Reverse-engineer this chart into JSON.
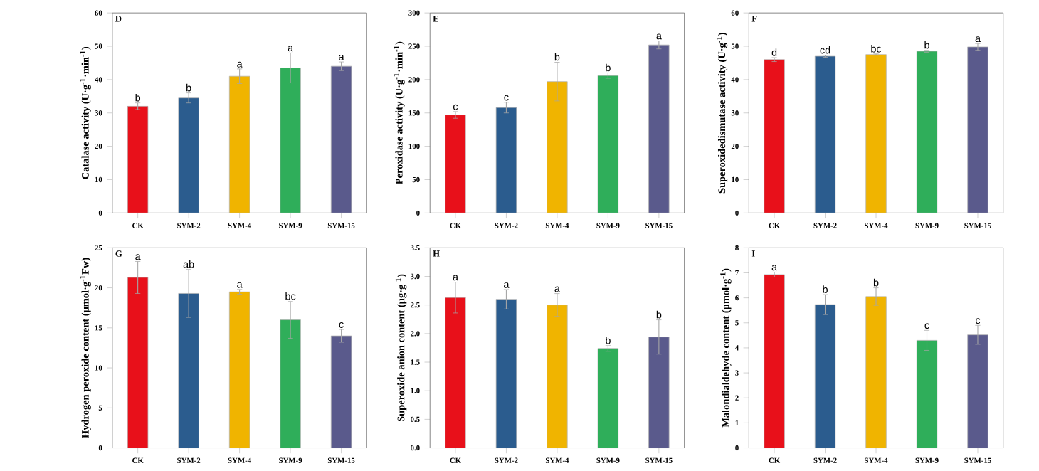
{
  "chart_data": [
    {
      "type": "bar",
      "title": "D",
      "ylabel": "Catalase activity (U·g$^{-1}$·min$^{-1}$)",
      "categories": [
        "CK",
        "SYM-2",
        "SYM-4",
        "SYM-9",
        "SYM-15"
      ],
      "values": [
        32,
        34.5,
        41,
        43.5,
        44
      ],
      "errors": [
        1,
        1.5,
        2.2,
        4.5,
        1.3
      ],
      "colors": [
        "#e8101a",
        "#2b5c8e",
        "#f0b400",
        "#2fae5a",
        "#5a5a8c"
      ],
      "ylim": [
        0,
        60
      ],
      "yticks": [
        0,
        10,
        20,
        30,
        40,
        50,
        60
      ],
      "annotations": [
        {
          "text": "b",
          "x": "CK",
          "y": 33
        },
        {
          "text": "b",
          "x": "SYM-2",
          "y": 36
        },
        {
          "text": "a",
          "x": "SYM-4",
          "y": 43.2
        },
        {
          "text": "a",
          "x": "SYM-9",
          "y": 48
        },
        {
          "text": "a",
          "x": "SYM-15",
          "y": 45.3
        }
      ]
    },
    {
      "type": "bar",
      "title": "E",
      "ylabel": "Peroxidase activity (U·g$^{-1}$·min$^{-1}$)",
      "categories": [
        "CK",
        "SYM-2",
        "SYM-4",
        "SYM-9",
        "SYM-15"
      ],
      "values": [
        147,
        158,
        197,
        206,
        252
      ],
      "errors": [
        5,
        8,
        29,
        4,
        6
      ],
      "colors": [
        "#e8101a",
        "#2b5c8e",
        "#f0b400",
        "#2fae5a",
        "#5a5a8c"
      ],
      "ylim": [
        0,
        300
      ],
      "yticks": [
        0,
        50,
        100,
        150,
        200,
        250,
        300
      ],
      "annotations": [
        {
          "text": "c",
          "x": "CK",
          "y": 152
        },
        {
          "text": "c",
          "x": "SYM-2",
          "y": 166
        },
        {
          "text": "b",
          "x": "SYM-4",
          "y": 226
        },
        {
          "text": "b",
          "x": "SYM-9",
          "y": 210
        },
        {
          "text": "a",
          "x": "SYM-15",
          "y": 258
        }
      ]
    },
    {
      "type": "bar",
      "title": "F",
      "ylabel": "Superoxidedismutase activity (U·g$^{-1}$)",
      "categories": [
        "CK",
        "SYM-2",
        "SYM-4",
        "SYM-9",
        "SYM-15"
      ],
      "values": [
        46,
        47,
        47.5,
        48.5,
        49.8
      ],
      "errors": [
        0.6,
        0.3,
        0.2,
        0.3,
        1
      ],
      "colors": [
        "#e8101a",
        "#2b5c8e",
        "#f0b400",
        "#2fae5a",
        "#5a5a8c"
      ],
      "ylim": [
        0,
        60
      ],
      "yticks": [
        0,
        10,
        20,
        30,
        40,
        50,
        60
      ],
      "annotations": [
        {
          "text": "d",
          "x": "CK",
          "y": 46.6
        },
        {
          "text": "cd",
          "x": "SYM-2",
          "y": 47.3
        },
        {
          "text": "bc",
          "x": "SYM-4",
          "y": 47.7
        },
        {
          "text": "b",
          "x": "SYM-9",
          "y": 48.8
        },
        {
          "text": "a",
          "x": "SYM-15",
          "y": 50.8
        }
      ]
    },
    {
      "type": "bar",
      "title": "G",
      "ylabel": "Hydrogen peroxide content (μmol·g$^{-1}$Fw)",
      "categories": [
        "CK",
        "SYM-2",
        "SYM-4",
        "SYM-9",
        "SYM-15"
      ],
      "values": [
        21.3,
        19.3,
        19.5,
        16,
        14
      ],
      "errors": [
        2,
        3,
        0.3,
        2.3,
        0.8
      ],
      "colors": [
        "#e8101a",
        "#2b5c8e",
        "#f0b400",
        "#2fae5a",
        "#5a5a8c"
      ],
      "ylim": [
        0,
        25
      ],
      "yticks": [
        0,
        5,
        10,
        15,
        20,
        25
      ],
      "annotations": [
        {
          "text": "a",
          "x": "CK",
          "y": 23.3
        },
        {
          "text": "ab",
          "x": "SYM-2",
          "y": 22.3
        },
        {
          "text": "a",
          "x": "SYM-4",
          "y": 19.8
        },
        {
          "text": "bc",
          "x": "SYM-9",
          "y": 18.3
        },
        {
          "text": "c",
          "x": "SYM-15",
          "y": 14.8
        }
      ]
    },
    {
      "type": "bar",
      "title": "H",
      "ylabel": "Superoxide anion content (μg·g$^{-1}$)",
      "categories": [
        "CK",
        "SYM-2",
        "SYM-4",
        "SYM-9",
        "SYM-15"
      ],
      "values": [
        2.63,
        2.6,
        2.5,
        1.74,
        1.94
      ],
      "errors": [
        0.27,
        0.17,
        0.2,
        0.05,
        0.3
      ],
      "colors": [
        "#e8101a",
        "#2b5c8e",
        "#f0b400",
        "#2fae5a",
        "#5a5a8c"
      ],
      "ylim": [
        0,
        3.5
      ],
      "yticks": [
        {
          "value": 0,
          "label": "0.0"
        },
        0.5,
        {
          "value": 1,
          "label": "1.0"
        },
        1.5,
        {
          "value": 2,
          "label": "2.0"
        },
        2.5,
        {
          "value": 3,
          "label": "3.0"
        },
        3.5
      ],
      "annotations": [
        {
          "text": "a",
          "x": "CK",
          "y": 2.9
        },
        {
          "text": "a",
          "x": "SYM-2",
          "y": 2.77
        },
        {
          "text": "a",
          "x": "SYM-4",
          "y": 2.7
        },
        {
          "text": "b",
          "x": "SYM-9",
          "y": 1.79
        },
        {
          "text": "b",
          "x": "SYM-15",
          "y": 2.24
        }
      ]
    },
    {
      "type": "bar",
      "title": "I",
      "ylabel": "Malondialdehyde content (μmol·g$^{-1}$)",
      "categories": [
        "CK",
        "SYM-2",
        "SYM-4",
        "SYM-9",
        "SYM-15"
      ],
      "values": [
        6.93,
        5.73,
        6.05,
        4.3,
        4.52
      ],
      "errors": [
        0.1,
        0.4,
        0.35,
        0.4,
        0.38
      ],
      "colors": [
        "#e8101a",
        "#2b5c8e",
        "#f0b400",
        "#2fae5a",
        "#5a5a8c"
      ],
      "ylim": [
        0,
        8
      ],
      "yticks": [
        0,
        1,
        2,
        3,
        4,
        5,
        6,
        7,
        8
      ],
      "annotations": [
        {
          "text": "a",
          "x": "CK",
          "y": 7.03
        },
        {
          "text": "b",
          "x": "SYM-2",
          "y": 6.13
        },
        {
          "text": "b",
          "x": "SYM-4",
          "y": 6.4
        },
        {
          "text": "c",
          "x": "SYM-9",
          "y": 4.7
        },
        {
          "text": "c",
          "x": "SYM-15",
          "y": 4.9
        }
      ]
    }
  ]
}
